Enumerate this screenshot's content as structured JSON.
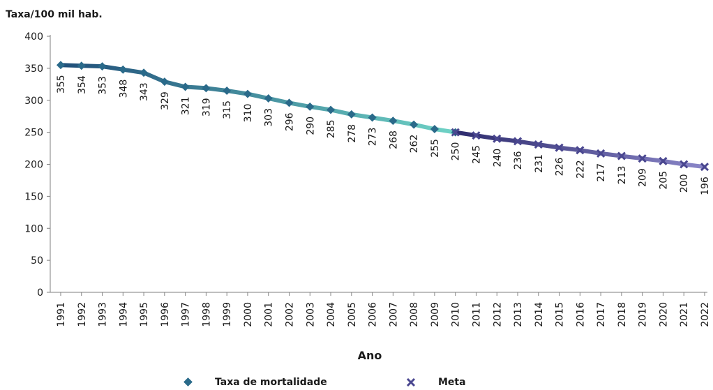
{
  "chart_data": {
    "type": "line",
    "ylabel": "Taxa/100 mil hab.",
    "xlabel": "Ano",
    "ylim": [
      0,
      400
    ],
    "yticks": [
      0,
      50,
      100,
      150,
      200,
      250,
      300,
      350,
      400
    ],
    "x": [
      "1991",
      "1992",
      "1993",
      "1994",
      "1995",
      "1996",
      "1997",
      "1998",
      "1999",
      "2000",
      "2001",
      "2002",
      "2003",
      "2004",
      "2005",
      "2006",
      "2007",
      "2008",
      "2009",
      "2010",
      "2011",
      "2012",
      "2013",
      "2014",
      "2015",
      "2016",
      "2017",
      "2018",
      "2019",
      "2020",
      "2021",
      "2022"
    ],
    "series": [
      {
        "name": "Taxa de mortalidade",
        "color_start": "#1f4e79",
        "color_end": "#6fd3c6",
        "marker": "diamond",
        "x": [
          "1991",
          "1992",
          "1993",
          "1994",
          "1995",
          "1996",
          "1997",
          "1998",
          "1999",
          "2000",
          "2001",
          "2002",
          "2003",
          "2004",
          "2005",
          "2006",
          "2007",
          "2008",
          "2009",
          "2010"
        ],
        "values": [
          355,
          354,
          353,
          348,
          343,
          329,
          321,
          319,
          315,
          310,
          303,
          296,
          290,
          285,
          278,
          273,
          268,
          262,
          255,
          250
        ]
      },
      {
        "name": "Meta",
        "color_start": "#2e2c6e",
        "color_end": "#8a86c8",
        "marker": "x",
        "x": [
          "2010",
          "2011",
          "2012",
          "2013",
          "2014",
          "2015",
          "2016",
          "2017",
          "2018",
          "2019",
          "2020",
          "2021",
          "2022"
        ],
        "values": [
          250,
          245,
          240,
          236,
          231,
          226,
          222,
          217,
          213,
          209,
          205,
          200,
          196
        ]
      }
    ],
    "legend_position": "bottom",
    "grid": false
  }
}
